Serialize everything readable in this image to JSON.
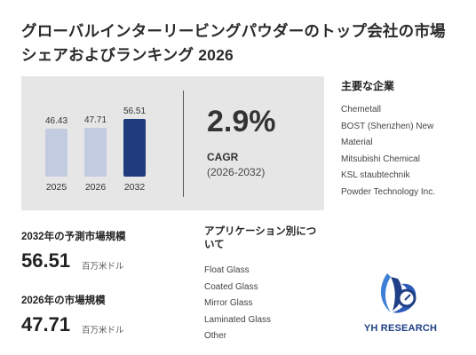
{
  "title": "グローバルインターリービングパウダーのトップ会社の市場シェアおよびランキング 2026",
  "chart_data": {
    "type": "bar",
    "categories": [
      "2025",
      "2026",
      "2032"
    ],
    "values": [
      46.43,
      47.71,
      56.51
    ],
    "value_labels": [
      "46.43",
      "47.71",
      "56.51"
    ],
    "colors": [
      "#c3cbe0",
      "#c3cbe0",
      "#1f3c7e"
    ],
    "ylim": [
      0,
      60
    ]
  },
  "cagr": {
    "value": "2.9%",
    "label": "CAGR",
    "range": "(2026-2032)"
  },
  "companies": {
    "heading": "主要な企業",
    "items": [
      "Chemetall",
      "BOST (Shenzhen) New",
      "Material",
      "Mitsubishi Chemical",
      "KSL staubtechnik",
      "Powder Technology Inc."
    ]
  },
  "forecast": {
    "label": "2032年の予測市場規模",
    "value": "56.51",
    "unit": "百万米ドル"
  },
  "current": {
    "label": "2026年の市場規模",
    "value": "47.71",
    "unit": "百万米ドル"
  },
  "applications": {
    "heading": "アプリケーション別について",
    "items": [
      "Float Glass",
      "Coated Glass",
      "Mirror Glass",
      "Laminated Glass",
      "Other"
    ]
  },
  "logo": {
    "text": "YH RESEARCH",
    "icon": "yh-research-logo-icon"
  }
}
